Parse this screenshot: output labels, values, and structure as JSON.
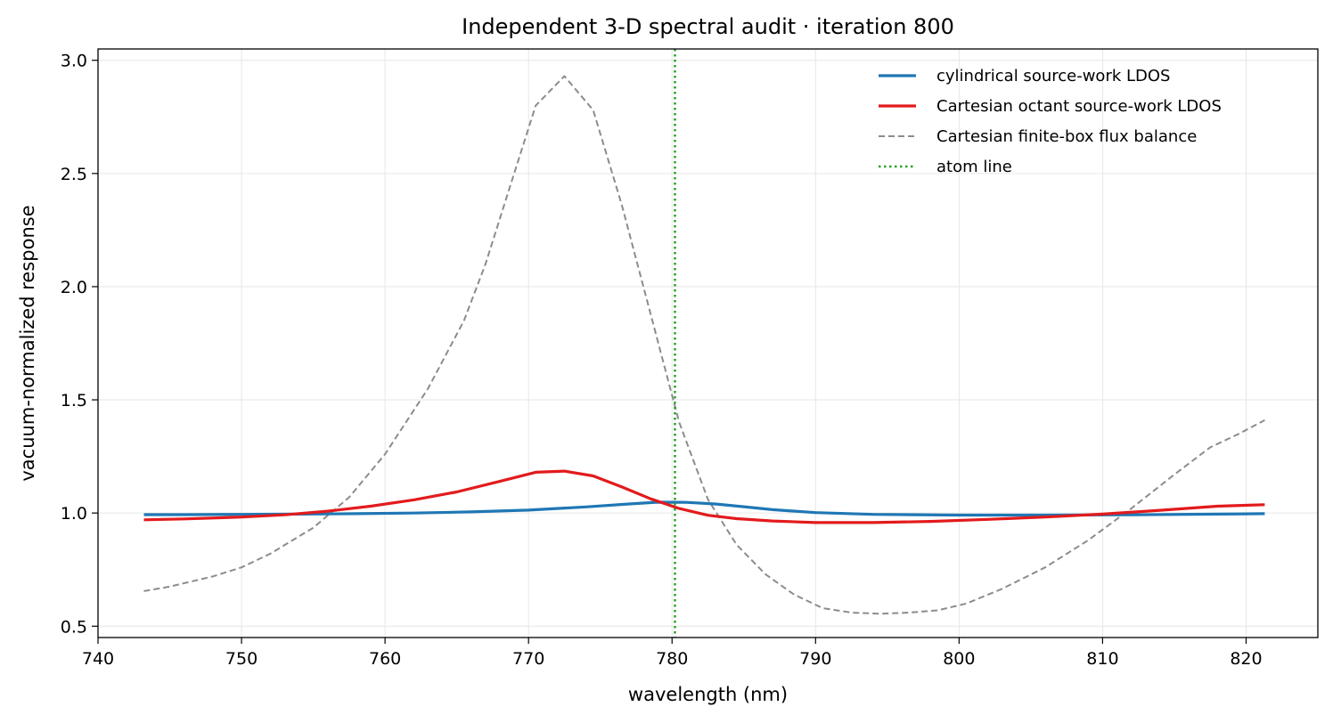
{
  "chart_data": {
    "type": "line",
    "title": "Independent 3-D spectral audit · iteration 800",
    "xlabel": "wavelength (nm)",
    "ylabel": "vacuum-normalized response",
    "xlim": [
      740,
      825
    ],
    "ylim": [
      0.45,
      3.05
    ],
    "xticks": [
      740,
      750,
      760,
      770,
      780,
      790,
      800,
      810,
      820
    ],
    "yticks": [
      0.5,
      1.0,
      1.5,
      2.0,
      2.5,
      3.0
    ],
    "xtick_labels": [
      "740",
      "750",
      "760",
      "770",
      "780",
      "790",
      "800",
      "810",
      "820"
    ],
    "ytick_labels": [
      "0.5",
      "1.0",
      "1.5",
      "2.0",
      "2.5",
      "3.0"
    ],
    "grid": true,
    "legend_position": "top-right",
    "series": [
      {
        "name": "cylindrical source-work LDOS",
        "color": "#1f77b4",
        "style": "solid",
        "x": [
          743.2,
          746,
          750,
          754,
          758,
          762,
          766,
          770,
          774,
          777,
          779,
          781,
          783,
          785,
          787,
          790,
          794,
          800,
          806,
          812,
          818,
          821.3
        ],
        "y": [
          0.993,
          0.993,
          0.994,
          0.995,
          0.997,
          1.0,
          1.005,
          1.013,
          1.027,
          1.04,
          1.048,
          1.047,
          1.04,
          1.028,
          1.015,
          1.002,
          0.994,
          0.991,
          0.991,
          0.992,
          0.995,
          0.997
        ]
      },
      {
        "name": "Cartesian octant source-work LDOS",
        "color": "#e31a1c",
        "style": "solid",
        "x": [
          743.2,
          746,
          750,
          753,
          756,
          759,
          762,
          765,
          768,
          770.5,
          772.5,
          774.5,
          776.5,
          778.5,
          780.5,
          782.5,
          784.5,
          787,
          790,
          794,
          798,
          802,
          806,
          810,
          814,
          818,
          821.3
        ],
        "y": [
          0.97,
          0.974,
          0.982,
          0.992,
          1.008,
          1.03,
          1.058,
          1.093,
          1.14,
          1.18,
          1.185,
          1.164,
          1.115,
          1.063,
          1.02,
          0.99,
          0.975,
          0.965,
          0.958,
          0.958,
          0.963,
          0.972,
          0.982,
          0.995,
          1.012,
          1.03,
          1.037
        ]
      },
      {
        "name": "Cartesian finite-box flux balance",
        "color": "#8c8c8c",
        "style": "dashed",
        "x": [
          743.2,
          745,
          748,
          750,
          752,
          755,
          757.5,
          760,
          763,
          765.5,
          767,
          768.5,
          770.5,
          772.5,
          774.5,
          776.5,
          778.5,
          780.5,
          782.5,
          784.5,
          786.5,
          788.5,
          790.5,
          792.5,
          794.5,
          796.5,
          798.5,
          800.5,
          803,
          806,
          809,
          812,
          815,
          817.5,
          819.5,
          821.3
        ],
        "y": [
          0.655,
          0.675,
          0.72,
          0.76,
          0.82,
          0.935,
          1.07,
          1.26,
          1.55,
          1.85,
          2.1,
          2.4,
          2.8,
          2.93,
          2.78,
          2.36,
          1.88,
          1.4,
          1.06,
          0.86,
          0.73,
          0.64,
          0.58,
          0.56,
          0.555,
          0.56,
          0.57,
          0.6,
          0.665,
          0.76,
          0.88,
          1.02,
          1.17,
          1.29,
          1.35,
          1.41
        ]
      },
      {
        "name": "atom line",
        "color": "#2ca02c",
        "style": "dotted",
        "vline_x": 780.2
      }
    ]
  }
}
